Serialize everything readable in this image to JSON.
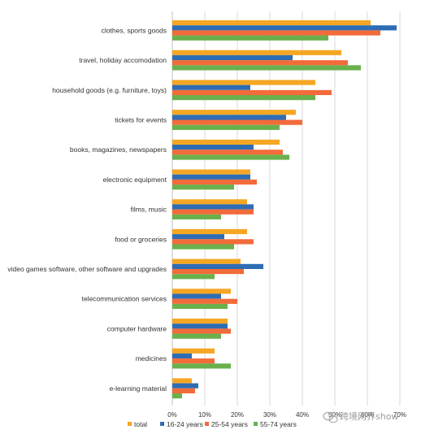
{
  "chart_data": {
    "type": "bar",
    "orientation": "horizontal",
    "categories": [
      "clothes, sports goods",
      "travel, holiday accomodation",
      "household goods (e.g. furniture, toys)",
      "tickets for events",
      "books, magazines, newspapers",
      "electronic equipment",
      "films, music",
      "food or groceries",
      "video games software, other software and upgrades",
      "telecommunication services",
      "computer hardware",
      "medicines",
      "e-learning material"
    ],
    "series": [
      {
        "name": "total",
        "color": "#f5a623",
        "values": [
          61,
          52,
          44,
          38,
          33,
          24,
          23,
          23,
          21,
          18,
          17,
          13,
          6
        ]
      },
      {
        "name": "16-24 years",
        "color": "#2e6db4",
        "values": [
          69,
          37,
          24,
          35,
          25,
          24,
          25,
          16,
          28,
          15,
          17,
          6,
          8
        ]
      },
      {
        "name": "25-54 years",
        "color": "#f26b3a",
        "values": [
          64,
          54,
          49,
          40,
          34,
          26,
          25,
          25,
          22,
          20,
          18,
          13,
          7
        ]
      },
      {
        "name": "55-74 years",
        "color": "#6ab04c",
        "values": [
          48,
          58,
          44,
          33,
          36,
          19,
          15,
          19,
          13,
          17,
          15,
          18,
          3
        ]
      }
    ],
    "xlim": [
      0,
      70
    ],
    "x_ticks": [
      "0%",
      "10%",
      "20%",
      "30%",
      "40%",
      "50%",
      "60%",
      "70%"
    ],
    "grid": true,
    "legend_position": "bottom",
    "gridline_color": "#d9d9d9"
  },
  "watermark": {
    "text": "跨境网界show",
    "icon": "wechat-bubble-icon"
  }
}
